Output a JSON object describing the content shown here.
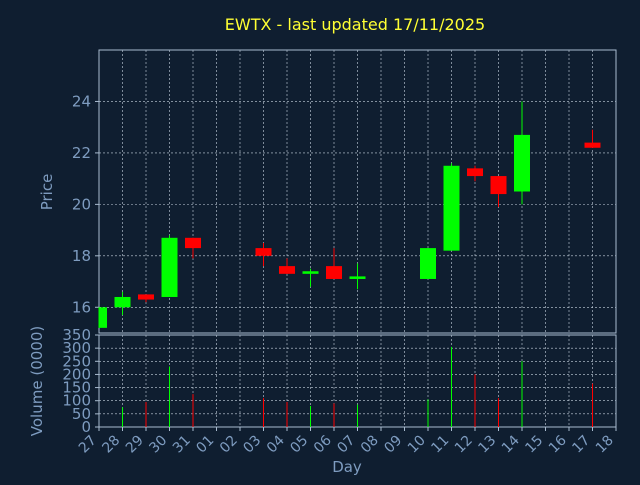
{
  "chart_data": {
    "type": "candlestick",
    "title": "EWTX - last updated 17/11/2025",
    "xlabel": "Day",
    "price_label": "Price",
    "volume_label": "Volume (0000)",
    "price_ylim": [
      15,
      26
    ],
    "price_ticks": [
      "16",
      "18",
      "20",
      "22",
      "24"
    ],
    "price_tick_values": [
      16,
      18,
      20,
      22,
      24
    ],
    "volume_ylim": [
      0,
      350
    ],
    "volume_ticks": [
      "0",
      "50",
      "100",
      "150",
      "200",
      "250",
      "300",
      "350"
    ],
    "volume_tick_values": [
      0,
      50,
      100,
      150,
      200,
      250,
      300,
      350
    ],
    "x_labels": [
      "27",
      "28",
      "29",
      "30",
      "31",
      "01",
      "02",
      "03",
      "04",
      "05",
      "06",
      "07",
      "08",
      "09",
      "10",
      "11",
      "12",
      "13",
      "14",
      "15",
      "16",
      "17",
      "18"
    ],
    "grid": true,
    "up_color": "#00ff00",
    "down_color": "#ff0000",
    "candles": [
      {
        "day": "27",
        "open": 15.2,
        "close": 16.0,
        "high": 16.0,
        "low": 15.2,
        "volume": 0
      },
      {
        "day": "28",
        "open": 16.0,
        "close": 16.4,
        "high": 16.6,
        "low": 15.7,
        "volume": 75
      },
      {
        "day": "29",
        "open": 16.5,
        "close": 16.3,
        "high": 16.5,
        "low": 16.2,
        "volume": 95
      },
      {
        "day": "30",
        "open": 16.4,
        "close": 18.7,
        "high": 18.8,
        "low": 16.4,
        "volume": 230
      },
      {
        "day": "31",
        "open": 18.7,
        "close": 18.3,
        "high": 18.7,
        "low": 17.9,
        "volume": 125
      },
      {
        "day": "03",
        "open": 18.3,
        "close": 18.0,
        "high": 18.5,
        "low": 17.6,
        "volume": 110
      },
      {
        "day": "04",
        "open": 17.6,
        "close": 17.3,
        "high": 17.9,
        "low": 17.3,
        "volume": 95
      },
      {
        "day": "05",
        "open": 17.3,
        "close": 17.4,
        "high": 17.5,
        "low": 16.8,
        "volume": 80
      },
      {
        "day": "06",
        "open": 17.6,
        "close": 17.1,
        "high": 18.3,
        "low": 17.1,
        "volume": 90
      },
      {
        "day": "07",
        "open": 17.1,
        "close": 17.2,
        "high": 17.7,
        "low": 16.7,
        "volume": 85
      },
      {
        "day": "10",
        "open": 17.1,
        "close": 18.3,
        "high": 18.3,
        "low": 17.1,
        "volume": 105
      },
      {
        "day": "11",
        "open": 18.2,
        "close": 21.5,
        "high": 21.6,
        "low": 18.2,
        "volume": 305
      },
      {
        "day": "12",
        "open": 21.4,
        "close": 21.1,
        "high": 21.5,
        "low": 20.9,
        "volume": 200
      },
      {
        "day": "13",
        "open": 21.1,
        "close": 20.4,
        "high": 21.1,
        "low": 19.9,
        "volume": 110
      },
      {
        "day": "14",
        "open": 20.5,
        "close": 22.7,
        "high": 24.0,
        "low": 20.0,
        "volume": 250
      },
      {
        "day": "17",
        "open": 22.4,
        "close": 22.2,
        "high": 22.9,
        "low": 22.2,
        "volume": 165
      }
    ]
  }
}
